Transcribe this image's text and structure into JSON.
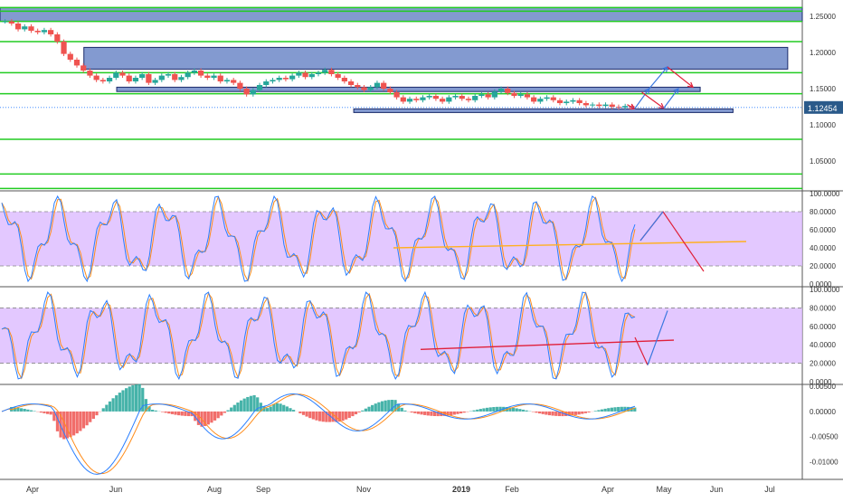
{
  "chart_data": {
    "type": "line",
    "symbol_price_label": "1.12454",
    "x_axis": {
      "labels": [
        "Apr",
        "Jun",
        "Aug",
        "Sep",
        "Nov",
        "2019",
        "Feb",
        "Apr",
        "May",
        "Jun",
        "Jul"
      ],
      "bold": [
        "2019"
      ]
    },
    "panes": [
      {
        "id": "price",
        "ylim": [
          1.01,
          1.265
        ],
        "ticks": [
          "1.25000",
          "1.20000",
          "1.15000",
          "1.10000",
          "1.05000"
        ],
        "tick_values": [
          1.25,
          1.2,
          1.15,
          1.1,
          1.05
        ],
        "horizontal_levels": [
          1.262,
          1.257,
          1.243,
          1.215,
          1.172,
          1.143,
          1.08,
          1.032,
          1.012
        ],
        "zones": [
          {
            "x0": 0,
            "x1": 220,
            "y0": 1.243,
            "y1": 1.262
          },
          {
            "x0": 23,
            "x1": 216,
            "y0": 1.177,
            "y1": 1.207
          },
          {
            "x0": 32,
            "x1": 192,
            "y0": 1.146,
            "y1": 1.152
          },
          {
            "x0": 97,
            "x1": 201,
            "y0": 1.117,
            "y1": 1.122
          }
        ],
        "close": [
          1.243,
          1.24,
          1.232,
          1.236,
          1.23,
          1.228,
          1.231,
          1.225,
          1.215,
          1.198,
          1.19,
          1.182,
          1.175,
          1.168,
          1.162,
          1.16,
          1.165,
          1.172,
          1.168,
          1.16,
          1.165,
          1.17,
          1.158,
          1.162,
          1.168,
          1.17,
          1.162,
          1.166,
          1.172,
          1.175,
          1.168,
          1.165,
          1.168,
          1.16,
          1.162,
          1.158,
          1.15,
          1.142,
          1.148,
          1.155,
          1.16,
          1.162,
          1.165,
          1.163,
          1.168,
          1.172,
          1.166,
          1.17,
          1.172,
          1.176,
          1.17,
          1.165,
          1.16,
          1.155,
          1.152,
          1.148,
          1.152,
          1.158,
          1.15,
          1.145,
          1.138,
          1.132,
          1.136,
          1.134,
          1.138,
          1.14,
          1.136,
          1.132,
          1.138,
          1.14,
          1.136,
          1.134,
          1.14,
          1.142,
          1.138,
          1.146,
          1.15,
          1.144,
          1.14,
          1.142,
          1.138,
          1.132,
          1.136,
          1.138,
          1.134,
          1.13,
          1.132,
          1.134,
          1.13,
          1.127,
          1.128,
          1.126,
          1.128,
          1.125,
          1.124,
          1.126,
          1.124
        ],
        "projection_arrows": [
          {
            "color": "#e0203a",
            "from": [
              172,
              1.128
            ],
            "to": [
              174,
              1.122
            ]
          },
          {
            "color": "#3a78e0",
            "from": [
              174,
              1.122
            ],
            "to": [
              178,
              1.15
            ]
          },
          {
            "color": "#3a78e0",
            "from": [
              178,
              1.15
            ],
            "to": [
              183,
              1.18
            ]
          },
          {
            "color": "#e0203a",
            "from": [
              183,
              1.18
            ],
            "to": [
              190,
              1.152
            ]
          },
          {
            "color": "#e0203a",
            "from": [
              176,
              1.145
            ],
            "to": [
              182,
              1.123
            ]
          },
          {
            "color": "#3a78e0",
            "from": [
              182,
              1.123
            ],
            "to": [
              186,
              1.15
            ]
          }
        ]
      },
      {
        "id": "stoch1",
        "ylim": [
          -2,
          102
        ],
        "ticks": [
          "100.0000",
          "80.0000",
          "60.0000",
          "40.0000",
          "20.0000",
          "0.0000"
        ],
        "tick_values": [
          100,
          80,
          60,
          40,
          20,
          0
        ],
        "band": [
          20,
          80
        ]
      },
      {
        "id": "stoch2",
        "ylim": [
          -2,
          102
        ],
        "ticks": [
          "100.0000",
          "80.0000",
          "60.0000",
          "40.0000",
          "20.0000",
          "0.0000"
        ],
        "tick_values": [
          100,
          80,
          60,
          40,
          20,
          0
        ],
        "band": [
          20,
          80
        ]
      },
      {
        "id": "macd",
        "ylim": [
          -0.0135,
          0.0052
        ],
        "ticks": [
          "0.00500",
          "0.00000",
          "-0.00500",
          "-0.01000"
        ],
        "tick_values": [
          0.005,
          0.0,
          -0.005,
          -0.01
        ]
      }
    ],
    "colors": {
      "bull": "#26a69a",
      "bear": "#ef5350",
      "level_line": "#22cc22",
      "zone_fill": "#5a78c0",
      "band_fill": "#dcbaff",
      "line_blue": "#2a7fff",
      "line_orange": "#ff8c1a",
      "arrow_red": "#e0203a",
      "arrow_blue": "#3a78e0",
      "arrow_orange": "#ffb020",
      "price_label_bg": "#2a5a8a"
    }
  }
}
